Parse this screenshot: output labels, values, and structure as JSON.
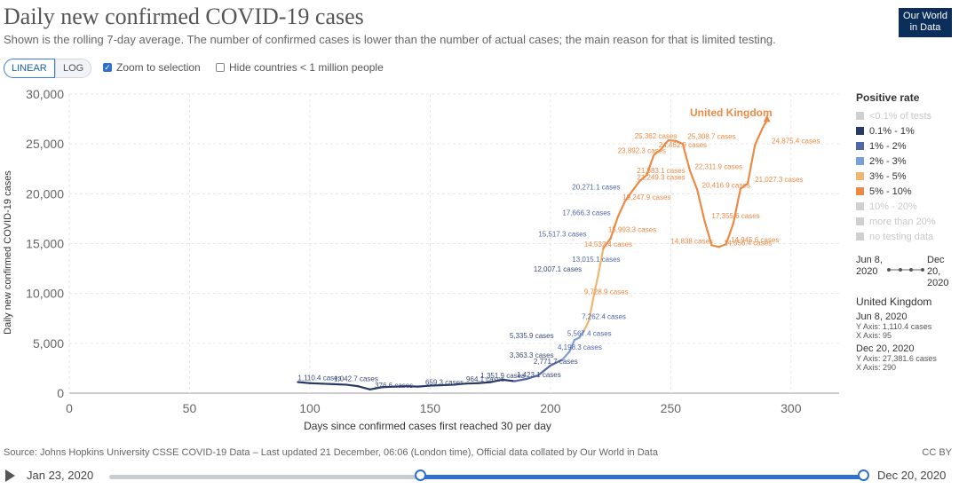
{
  "header": {
    "title": "Daily new confirmed COVID-19 cases",
    "subtitle": "Shown is the rolling 7-day average. The number of confirmed cases is lower than the number of actual cases; the main reason for that is limited testing.",
    "logo_line1": "Our World",
    "logo_line2": "in Data"
  },
  "controls": {
    "linear_label": "LINEAR",
    "log_label": "LOG",
    "zoom_label": "Zoom to selection",
    "zoom_checked": true,
    "hide_label": "Hide countries < 1 million people",
    "hide_checked": false
  },
  "legend": {
    "title": "Positive rate",
    "items": [
      {
        "label": "<0.1% of tests",
        "color": "#d0d0d0",
        "active": false
      },
      {
        "label": "0.1% - 1%",
        "color": "#283a66",
        "active": true
      },
      {
        "label": "1% - 2%",
        "color": "#4f67a6",
        "active": true
      },
      {
        "label": "2% - 3%",
        "color": "#7b9fd8",
        "active": true
      },
      {
        "label": "3% - 5%",
        "color": "#f0b670",
        "active": true
      },
      {
        "label": "5% - 10%",
        "color": "#ec8a45",
        "active": true
      },
      {
        "label": "10% - 20%",
        "color": "#d0d0d0",
        "active": false
      },
      {
        "label": "more than 20%",
        "color": "#d0d0d0",
        "active": false
      },
      {
        "label": "no testing data",
        "color": "#d0d0d0",
        "active": false
      }
    ]
  },
  "timespan": {
    "start": "Jun 8, 2020",
    "end": "Dec 20, 2020"
  },
  "entity": {
    "name": "United Kingdom",
    "start_date": "Jun 8, 2020",
    "start_y": "Y Axis: 1,110.4 cases",
    "start_x": "X Axis: 95",
    "end_date": "Dec 20, 2020",
    "end_y": "Y Axis: 27,381.6 cases",
    "end_x": "X Axis: 290"
  },
  "footer": {
    "source": "Source: Johns Hopkins University CSSE COVID-19 Data – Last updated 21 December, 06:06 (London time), Official data collated by Our World in Data",
    "license": "CC BY"
  },
  "timeline": {
    "start": "Jan 23, 2020",
    "end": "Dec 20, 2020"
  },
  "chart_data": {
    "type": "line",
    "xlabel": "Days since confirmed cases first reached 30 per day",
    "ylabel": "Daily new confirmed COVID-19 cases",
    "xlim": [
      0,
      320
    ],
    "ylim": [
      0,
      30000
    ],
    "x_ticks": [
      0,
      50,
      100,
      150,
      200,
      250,
      300
    ],
    "x_tick_labels": [
      "0",
      "50",
      "100",
      "150",
      "200",
      "250",
      "300"
    ],
    "y_ticks": [
      0,
      5000,
      10000,
      15000,
      20000,
      25000,
      30000
    ],
    "y_tick_labels": [
      "0",
      "5,000",
      "10,000",
      "15,000",
      "20,000",
      "25,000",
      "30,000"
    ],
    "grid": true,
    "series": [
      {
        "name": "United Kingdom",
        "x": [
          95,
          100,
          105,
          110,
          115,
          120,
          125,
          130,
          135,
          140,
          145,
          150,
          155,
          160,
          165,
          170,
          175,
          180,
          185,
          190,
          195,
          200,
          205,
          208,
          210,
          212,
          214,
          216,
          218,
          220,
          222,
          225,
          228,
          231,
          234,
          237,
          240,
          243,
          246,
          249,
          252,
          255,
          258,
          261,
          264,
          267,
          270,
          273,
          276,
          279,
          282,
          285,
          288,
          290
        ],
        "y": [
          1110.4,
          1000,
          950,
          900,
          850,
          700,
          376.6,
          600,
          650,
          700,
          659.3,
          750,
          800,
          850,
          964.1,
          1000,
          1100,
          1351.9,
          1200,
          1423.1,
          1800,
          2771.7,
          3363.3,
          4198.3,
          5335.9,
          5567.4,
          6300,
          7262.4,
          9728.9,
          12007.1,
          14532.4,
          15517.3,
          17666.3,
          19247.9,
          20271.1,
          21249.3,
          21883.1,
          23892.3,
          24462.9,
          25362,
          25308.7,
          25000,
          22311.9,
          20416.9,
          17355.6,
          14838,
          14656.4,
          14945.6,
          17000,
          20500,
          21027.3,
          24875.4,
          26500,
          27381.6
        ],
        "color_bands": [
          {
            "to_x": 185,
            "color": "#283a66"
          },
          {
            "to_x": 205,
            "color": "#4f67a6"
          },
          {
            "to_x": 214,
            "color": "#7b9fd8"
          },
          {
            "to_x": 222,
            "color": "#f0b670"
          },
          {
            "to_x": 290,
            "color": "#ec8a45"
          }
        ]
      }
    ],
    "annotations": [
      {
        "x": 95,
        "y": 1110.4,
        "text": "1,110.4 cases"
      },
      {
        "x": 110,
        "y": 1042.7,
        "text": "1,042.7 cases"
      },
      {
        "x": 127,
        "y": 376.6,
        "text": "376.6 cases"
      },
      {
        "x": 148,
        "y": 659.3,
        "text": "659.3 cases"
      },
      {
        "x": 165,
        "y": 964.1,
        "text": "964.1 cases"
      },
      {
        "x": 171,
        "y": 1351.9,
        "text": "1,351.9 cases"
      },
      {
        "x": 186,
        "y": 1423.1,
        "text": "1,423.1 cases"
      },
      {
        "x": 193,
        "y": 2771.7,
        "text": "2,771.7 cases"
      },
      {
        "x": 183,
        "y": 3363.3,
        "text": "3,363.3 cases"
      },
      {
        "x": 203,
        "y": 4198.3,
        "text": "4,198.3 cases"
      },
      {
        "x": 183,
        "y": 5335.9,
        "text": "5,335.9 cases"
      },
      {
        "x": 207,
        "y": 5567.4,
        "text": "5,567.4 cases"
      },
      {
        "x": 213,
        "y": 7262.4,
        "text": "7,262.4 cases"
      },
      {
        "x": 214,
        "y": 9728.9,
        "text": "9,728.9 cases"
      },
      {
        "x": 193,
        "y": 12007.1,
        "text": "12,007.1 cases"
      },
      {
        "x": 209,
        "y": 13015.1,
        "text": "13,015.1 cases"
      },
      {
        "x": 214,
        "y": 14532.4,
        "text": "14,532.4 cases"
      },
      {
        "x": 195,
        "y": 15517.3,
        "text": "15,517.3 cases"
      },
      {
        "x": 224,
        "y": 15993.3,
        "text": "15,993.3 cases"
      },
      {
        "x": 205,
        "y": 17666.3,
        "text": "17,666.3 cases"
      },
      {
        "x": 230,
        "y": 19247.9,
        "text": "19,247.9 cases"
      },
      {
        "x": 209,
        "y": 20271.1,
        "text": "20,271.1 cases"
      },
      {
        "x": 236,
        "y": 21249.3,
        "text": "21,249.3 cases"
      },
      {
        "x": 236,
        "y": 21883.1,
        "text": "21,883.1 cases"
      },
      {
        "x": 228,
        "y": 23892.3,
        "text": "23,892.3 cases"
      },
      {
        "x": 245,
        "y": 24462.9,
        "text": "24,462.9 cases"
      },
      {
        "x": 235,
        "y": 25362,
        "text": "25,362 cases"
      },
      {
        "x": 257,
        "y": 25308.7,
        "text": "25,308.7 cases"
      },
      {
        "x": 260,
        "y": 22311.9,
        "text": "22,311.9 cases"
      },
      {
        "x": 263,
        "y": 20416.9,
        "text": "20,416.9 cases"
      },
      {
        "x": 267,
        "y": 17355.6,
        "text": "17,355.6 cases"
      },
      {
        "x": 275,
        "y": 14945.6,
        "text": "14,945.6 cases"
      },
      {
        "x": 250,
        "y": 14838,
        "text": "14,838 cases"
      },
      {
        "x": 272,
        "y": 14656.4,
        "text": "14,656.4 cases"
      },
      {
        "x": 285,
        "y": 21027.3,
        "text": "21,027.3 cases"
      },
      {
        "x": 292,
        "y": 24875.4,
        "text": "24,875.4 cases"
      },
      {
        "x": 258,
        "y": 27600,
        "text": "United Kingdom",
        "emphasis": true
      }
    ]
  }
}
